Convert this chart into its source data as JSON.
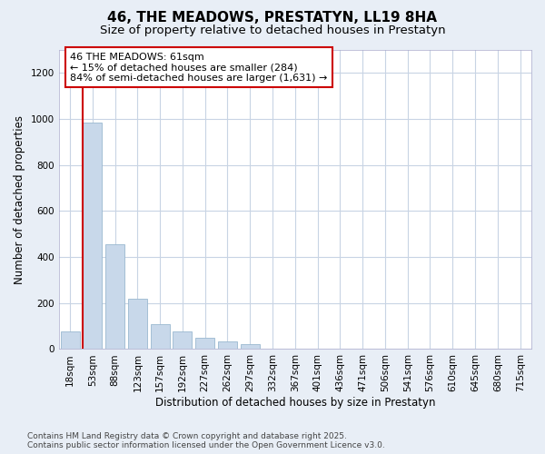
{
  "title": "46, THE MEADOWS, PRESTATYN, LL19 8HA",
  "subtitle": "Size of property relative to detached houses in Prestatyn",
  "xlabel": "Distribution of detached houses by size in Prestatyn",
  "ylabel": "Number of detached properties",
  "categories": [
    "18sqm",
    "53sqm",
    "88sqm",
    "123sqm",
    "157sqm",
    "192sqm",
    "227sqm",
    "262sqm",
    "297sqm",
    "332sqm",
    "367sqm",
    "401sqm",
    "436sqm",
    "471sqm",
    "506sqm",
    "541sqm",
    "576sqm",
    "610sqm",
    "645sqm",
    "680sqm",
    "715sqm"
  ],
  "values": [
    75,
    985,
    455,
    220,
    110,
    75,
    50,
    35,
    20,
    0,
    0,
    0,
    0,
    0,
    0,
    0,
    0,
    0,
    0,
    0,
    0
  ],
  "bar_color": "#c8d8ea",
  "bar_edgecolor": "#9ab8d0",
  "vline_x_pos": 0.57,
  "vline_color": "#cc0000",
  "annotation_text": "46 THE MEADOWS: 61sqm\n← 15% of detached houses are smaller (284)\n84% of semi-detached houses are larger (1,631) →",
  "annotation_box_facecolor": "#ffffff",
  "annotation_box_edgecolor": "#cc0000",
  "ylim": [
    0,
    1300
  ],
  "yticks": [
    0,
    200,
    400,
    600,
    800,
    1000,
    1200
  ],
  "fig_facecolor": "#e8eef6",
  "plot_facecolor": "#ffffff",
  "grid_color": "#c8d4e4",
  "title_fontsize": 11,
  "subtitle_fontsize": 9.5,
  "axis_label_fontsize": 8.5,
  "tick_fontsize": 7.5,
  "annotation_fontsize": 8,
  "footer_fontsize": 6.5,
  "footer_line1": "Contains HM Land Registry data © Crown copyright and database right 2025.",
  "footer_line2": "Contains public sector information licensed under the Open Government Licence v3.0."
}
